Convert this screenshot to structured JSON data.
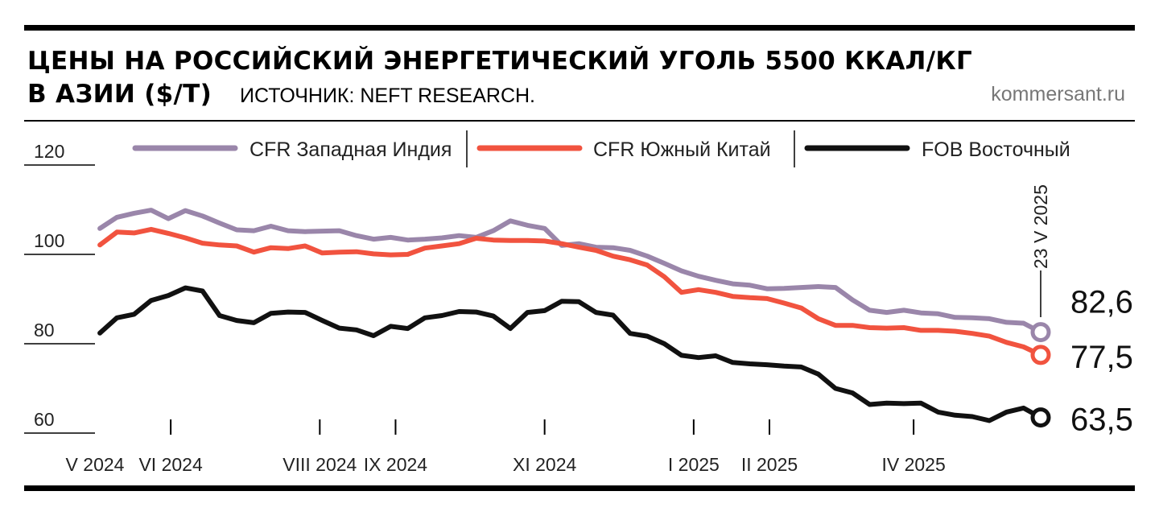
{
  "header": {
    "title_line1": "ЦЕНЫ НА РОССИЙСКИЙ ЭНЕРГЕТИЧЕСКИЙ УГОЛЬ 5500 ККАЛ/КГ",
    "title_line2": "В АЗИИ ($/Т)",
    "source": "ИСТОЧНИК: NEFT RESEARCH.",
    "brand": "kommersant.ru"
  },
  "chart_data": {
    "type": "line",
    "ylim": [
      60,
      120
    ],
    "y_ticks": [
      60,
      80,
      100,
      120
    ],
    "y_tick_labels": [
      "60",
      "80",
      "100",
      "120"
    ],
    "x_tick_labels": [
      "V 2024",
      "VI 2024",
      "VIII 2024",
      "IX 2024",
      "XI 2024",
      "I 2025",
      "II 2025",
      "IV 2025"
    ],
    "x_tick_dates": [
      "2024-05-01",
      "2024-06-01",
      "2024-08-01",
      "2024-09-01",
      "2024-11-01",
      "2025-01-01",
      "2025-02-01",
      "2025-04-01"
    ],
    "last_date_label": "23 V 2025",
    "last_date": "2025-05-23",
    "legend_placement": "top",
    "colors": {
      "purple": "#9a86aa",
      "red": "#f1533f",
      "black": "#111111"
    },
    "series": [
      {
        "name": "CFR Западная Индия",
        "color": "#9a86aa",
        "end_label": "82,6",
        "points": [
          [
            "2024-05-03",
            105.8
          ],
          [
            "2024-05-10",
            108.3
          ],
          [
            "2024-05-17",
            109.2
          ],
          [
            "2024-05-24",
            109.9
          ],
          [
            "2024-05-31",
            108.0
          ],
          [
            "2024-06-07",
            109.8
          ],
          [
            "2024-06-14",
            108.6
          ],
          [
            "2024-06-21",
            107.0
          ],
          [
            "2024-06-28",
            105.5
          ],
          [
            "2024-07-05",
            105.3
          ],
          [
            "2024-07-12",
            106.3
          ],
          [
            "2024-07-19",
            105.3
          ],
          [
            "2024-07-26",
            105.1
          ],
          [
            "2024-08-02",
            105.2
          ],
          [
            "2024-08-09",
            105.3
          ],
          [
            "2024-08-16",
            104.2
          ],
          [
            "2024-08-23",
            103.4
          ],
          [
            "2024-08-30",
            103.8
          ],
          [
            "2024-09-06",
            103.2
          ],
          [
            "2024-09-13",
            103.4
          ],
          [
            "2024-09-20",
            103.7
          ],
          [
            "2024-09-27",
            104.2
          ],
          [
            "2024-10-04",
            103.8
          ],
          [
            "2024-10-11",
            105.3
          ],
          [
            "2024-10-18",
            107.5
          ],
          [
            "2024-10-25",
            106.5
          ],
          [
            "2024-11-01",
            105.8
          ],
          [
            "2024-11-08",
            102.0
          ],
          [
            "2024-11-15",
            102.4
          ],
          [
            "2024-11-22",
            101.6
          ],
          [
            "2024-11-29",
            101.5
          ],
          [
            "2024-12-06",
            100.9
          ],
          [
            "2024-12-13",
            99.6
          ],
          [
            "2024-12-20",
            98.0
          ],
          [
            "2024-12-27",
            96.3
          ],
          [
            "2025-01-03",
            95.1
          ],
          [
            "2025-01-10",
            94.2
          ],
          [
            "2025-01-17",
            93.4
          ],
          [
            "2025-01-24",
            93.1
          ],
          [
            "2025-01-31",
            92.3
          ],
          [
            "2025-02-07",
            92.4
          ],
          [
            "2025-02-14",
            92.6
          ],
          [
            "2025-02-21",
            92.8
          ],
          [
            "2025-02-28",
            92.6
          ],
          [
            "2025-03-07",
            89.8
          ],
          [
            "2025-03-14",
            87.5
          ],
          [
            "2025-03-21",
            87.0
          ],
          [
            "2025-03-28",
            87.5
          ],
          [
            "2025-04-04",
            86.9
          ],
          [
            "2025-04-11",
            86.7
          ],
          [
            "2025-04-18",
            85.9
          ],
          [
            "2025-04-25",
            85.8
          ],
          [
            "2025-05-02",
            85.6
          ],
          [
            "2025-05-09",
            84.8
          ],
          [
            "2025-05-16",
            84.6
          ],
          [
            "2025-05-23",
            82.6
          ]
        ]
      },
      {
        "name": "CFR Южный Китай",
        "color": "#f1533f",
        "end_label": "77,5",
        "points": [
          [
            "2024-05-03",
            102.1
          ],
          [
            "2024-05-10",
            105.0
          ],
          [
            "2024-05-17",
            104.8
          ],
          [
            "2024-05-24",
            105.6
          ],
          [
            "2024-05-31",
            104.7
          ],
          [
            "2024-06-07",
            103.7
          ],
          [
            "2024-06-14",
            102.5
          ],
          [
            "2024-06-21",
            102.1
          ],
          [
            "2024-06-28",
            101.9
          ],
          [
            "2024-07-05",
            100.5
          ],
          [
            "2024-07-12",
            101.5
          ],
          [
            "2024-07-19",
            101.3
          ],
          [
            "2024-07-26",
            101.9
          ],
          [
            "2024-08-02",
            100.3
          ],
          [
            "2024-08-09",
            100.5
          ],
          [
            "2024-08-16",
            100.6
          ],
          [
            "2024-08-23",
            100.1
          ],
          [
            "2024-08-30",
            99.9
          ],
          [
            "2024-09-06",
            100.0
          ],
          [
            "2024-09-13",
            101.4
          ],
          [
            "2024-09-20",
            101.9
          ],
          [
            "2024-09-27",
            102.4
          ],
          [
            "2024-10-04",
            103.6
          ],
          [
            "2024-10-11",
            103.2
          ],
          [
            "2024-10-18",
            103.1
          ],
          [
            "2024-10-25",
            103.1
          ],
          [
            "2024-11-01",
            103.0
          ],
          [
            "2024-11-08",
            102.4
          ],
          [
            "2024-11-15",
            101.6
          ],
          [
            "2024-11-22",
            100.9
          ],
          [
            "2024-11-29",
            99.6
          ],
          [
            "2024-12-06",
            98.8
          ],
          [
            "2024-12-13",
            97.6
          ],
          [
            "2024-12-20",
            95.0
          ],
          [
            "2024-12-27",
            91.5
          ],
          [
            "2025-01-03",
            92.1
          ],
          [
            "2025-01-10",
            91.5
          ],
          [
            "2025-01-17",
            90.6
          ],
          [
            "2025-01-24",
            90.3
          ],
          [
            "2025-01-31",
            90.1
          ],
          [
            "2025-02-07",
            89.1
          ],
          [
            "2025-02-14",
            88.0
          ],
          [
            "2025-02-21",
            85.6
          ],
          [
            "2025-02-28",
            84.1
          ],
          [
            "2025-03-07",
            84.1
          ],
          [
            "2025-03-14",
            83.6
          ],
          [
            "2025-03-21",
            83.5
          ],
          [
            "2025-03-28",
            83.6
          ],
          [
            "2025-04-04",
            83.0
          ],
          [
            "2025-04-11",
            83.0
          ],
          [
            "2025-04-18",
            82.8
          ],
          [
            "2025-04-25",
            82.3
          ],
          [
            "2025-05-02",
            81.7
          ],
          [
            "2025-05-09",
            80.3
          ],
          [
            "2025-05-16",
            79.3
          ],
          [
            "2025-05-23",
            77.5
          ]
        ]
      },
      {
        "name": "FOB Восточный",
        "color": "#111111",
        "end_label": "63,5",
        "points": [
          [
            "2024-05-03",
            82.4
          ],
          [
            "2024-05-10",
            85.8
          ],
          [
            "2024-05-17",
            86.6
          ],
          [
            "2024-05-24",
            89.7
          ],
          [
            "2024-05-31",
            90.8
          ],
          [
            "2024-06-07",
            92.5
          ],
          [
            "2024-06-14",
            91.8
          ],
          [
            "2024-06-21",
            86.3
          ],
          [
            "2024-06-28",
            85.2
          ],
          [
            "2024-07-05",
            84.7
          ],
          [
            "2024-07-12",
            86.8
          ],
          [
            "2024-07-19",
            87.1
          ],
          [
            "2024-07-26",
            87.0
          ],
          [
            "2024-08-02",
            85.2
          ],
          [
            "2024-08-09",
            83.5
          ],
          [
            "2024-08-16",
            83.1
          ],
          [
            "2024-08-23",
            81.8
          ],
          [
            "2024-08-30",
            83.9
          ],
          [
            "2024-09-06",
            83.4
          ],
          [
            "2024-09-13",
            85.8
          ],
          [
            "2024-09-20",
            86.3
          ],
          [
            "2024-09-27",
            87.2
          ],
          [
            "2024-10-04",
            87.1
          ],
          [
            "2024-10-11",
            86.2
          ],
          [
            "2024-10-18",
            83.4
          ],
          [
            "2024-10-25",
            87.0
          ],
          [
            "2024-11-01",
            87.4
          ],
          [
            "2024-11-08",
            89.5
          ],
          [
            "2024-11-15",
            89.4
          ],
          [
            "2024-11-22",
            87.0
          ],
          [
            "2024-11-29",
            86.4
          ],
          [
            "2024-12-06",
            82.3
          ],
          [
            "2024-12-13",
            81.7
          ],
          [
            "2024-12-20",
            80.0
          ],
          [
            "2024-12-27",
            77.4
          ],
          [
            "2025-01-03",
            76.9
          ],
          [
            "2025-01-10",
            77.3
          ],
          [
            "2025-01-17",
            75.8
          ],
          [
            "2025-01-24",
            75.5
          ],
          [
            "2025-01-31",
            75.3
          ],
          [
            "2025-02-07",
            75.0
          ],
          [
            "2025-02-14",
            74.8
          ],
          [
            "2025-02-21",
            73.2
          ],
          [
            "2025-02-28",
            70.0
          ],
          [
            "2025-03-07",
            69.0
          ],
          [
            "2025-03-14",
            66.4
          ],
          [
            "2025-03-21",
            66.7
          ],
          [
            "2025-03-28",
            66.6
          ],
          [
            "2025-04-04",
            66.7
          ],
          [
            "2025-04-11",
            64.7
          ],
          [
            "2025-04-18",
            64.0
          ],
          [
            "2025-04-25",
            63.7
          ],
          [
            "2025-05-02",
            62.8
          ],
          [
            "2025-05-09",
            64.7
          ],
          [
            "2025-05-16",
            65.6
          ],
          [
            "2025-05-23",
            63.5
          ]
        ]
      }
    ]
  }
}
